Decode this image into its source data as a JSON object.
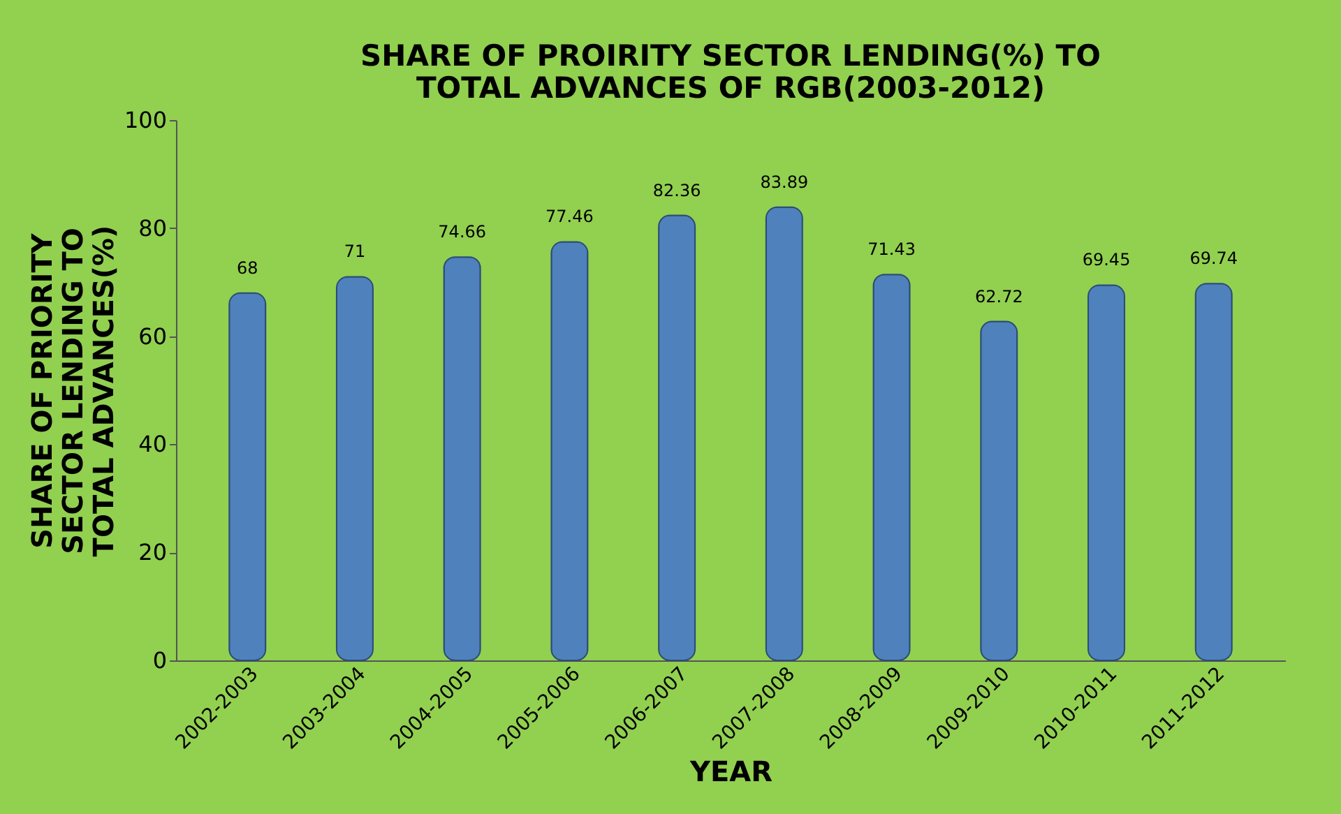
{
  "chart_data": {
    "type": "bar",
    "title": "SHARE OF PROIRITY SECTOR LENDING(%) TO TOTAL ADVANCES OF RGB(2003-2012)",
    "xlabel": "YEAR",
    "ylabel": "SHARE OF PRIORITY SECTOR LENDING TO TOTAL ADVANCES(%)",
    "categories": [
      "2002-2003",
      "2003-2004",
      "2004-2005",
      "2005-2006",
      "2006-2007",
      "2007-2008",
      "2008-2009",
      "2009-2010",
      "2010-2011",
      "2011-2012"
    ],
    "values": [
      68,
      71,
      74.66,
      77.46,
      82.36,
      83.89,
      71.43,
      62.72,
      69.45,
      69.74
    ],
    "color": "#4f81bd",
    "ylim": [
      0,
      100
    ],
    "yticks": [
      0,
      20,
      40,
      60,
      80,
      100
    ],
    "grid": false,
    "data_labels": true
  }
}
